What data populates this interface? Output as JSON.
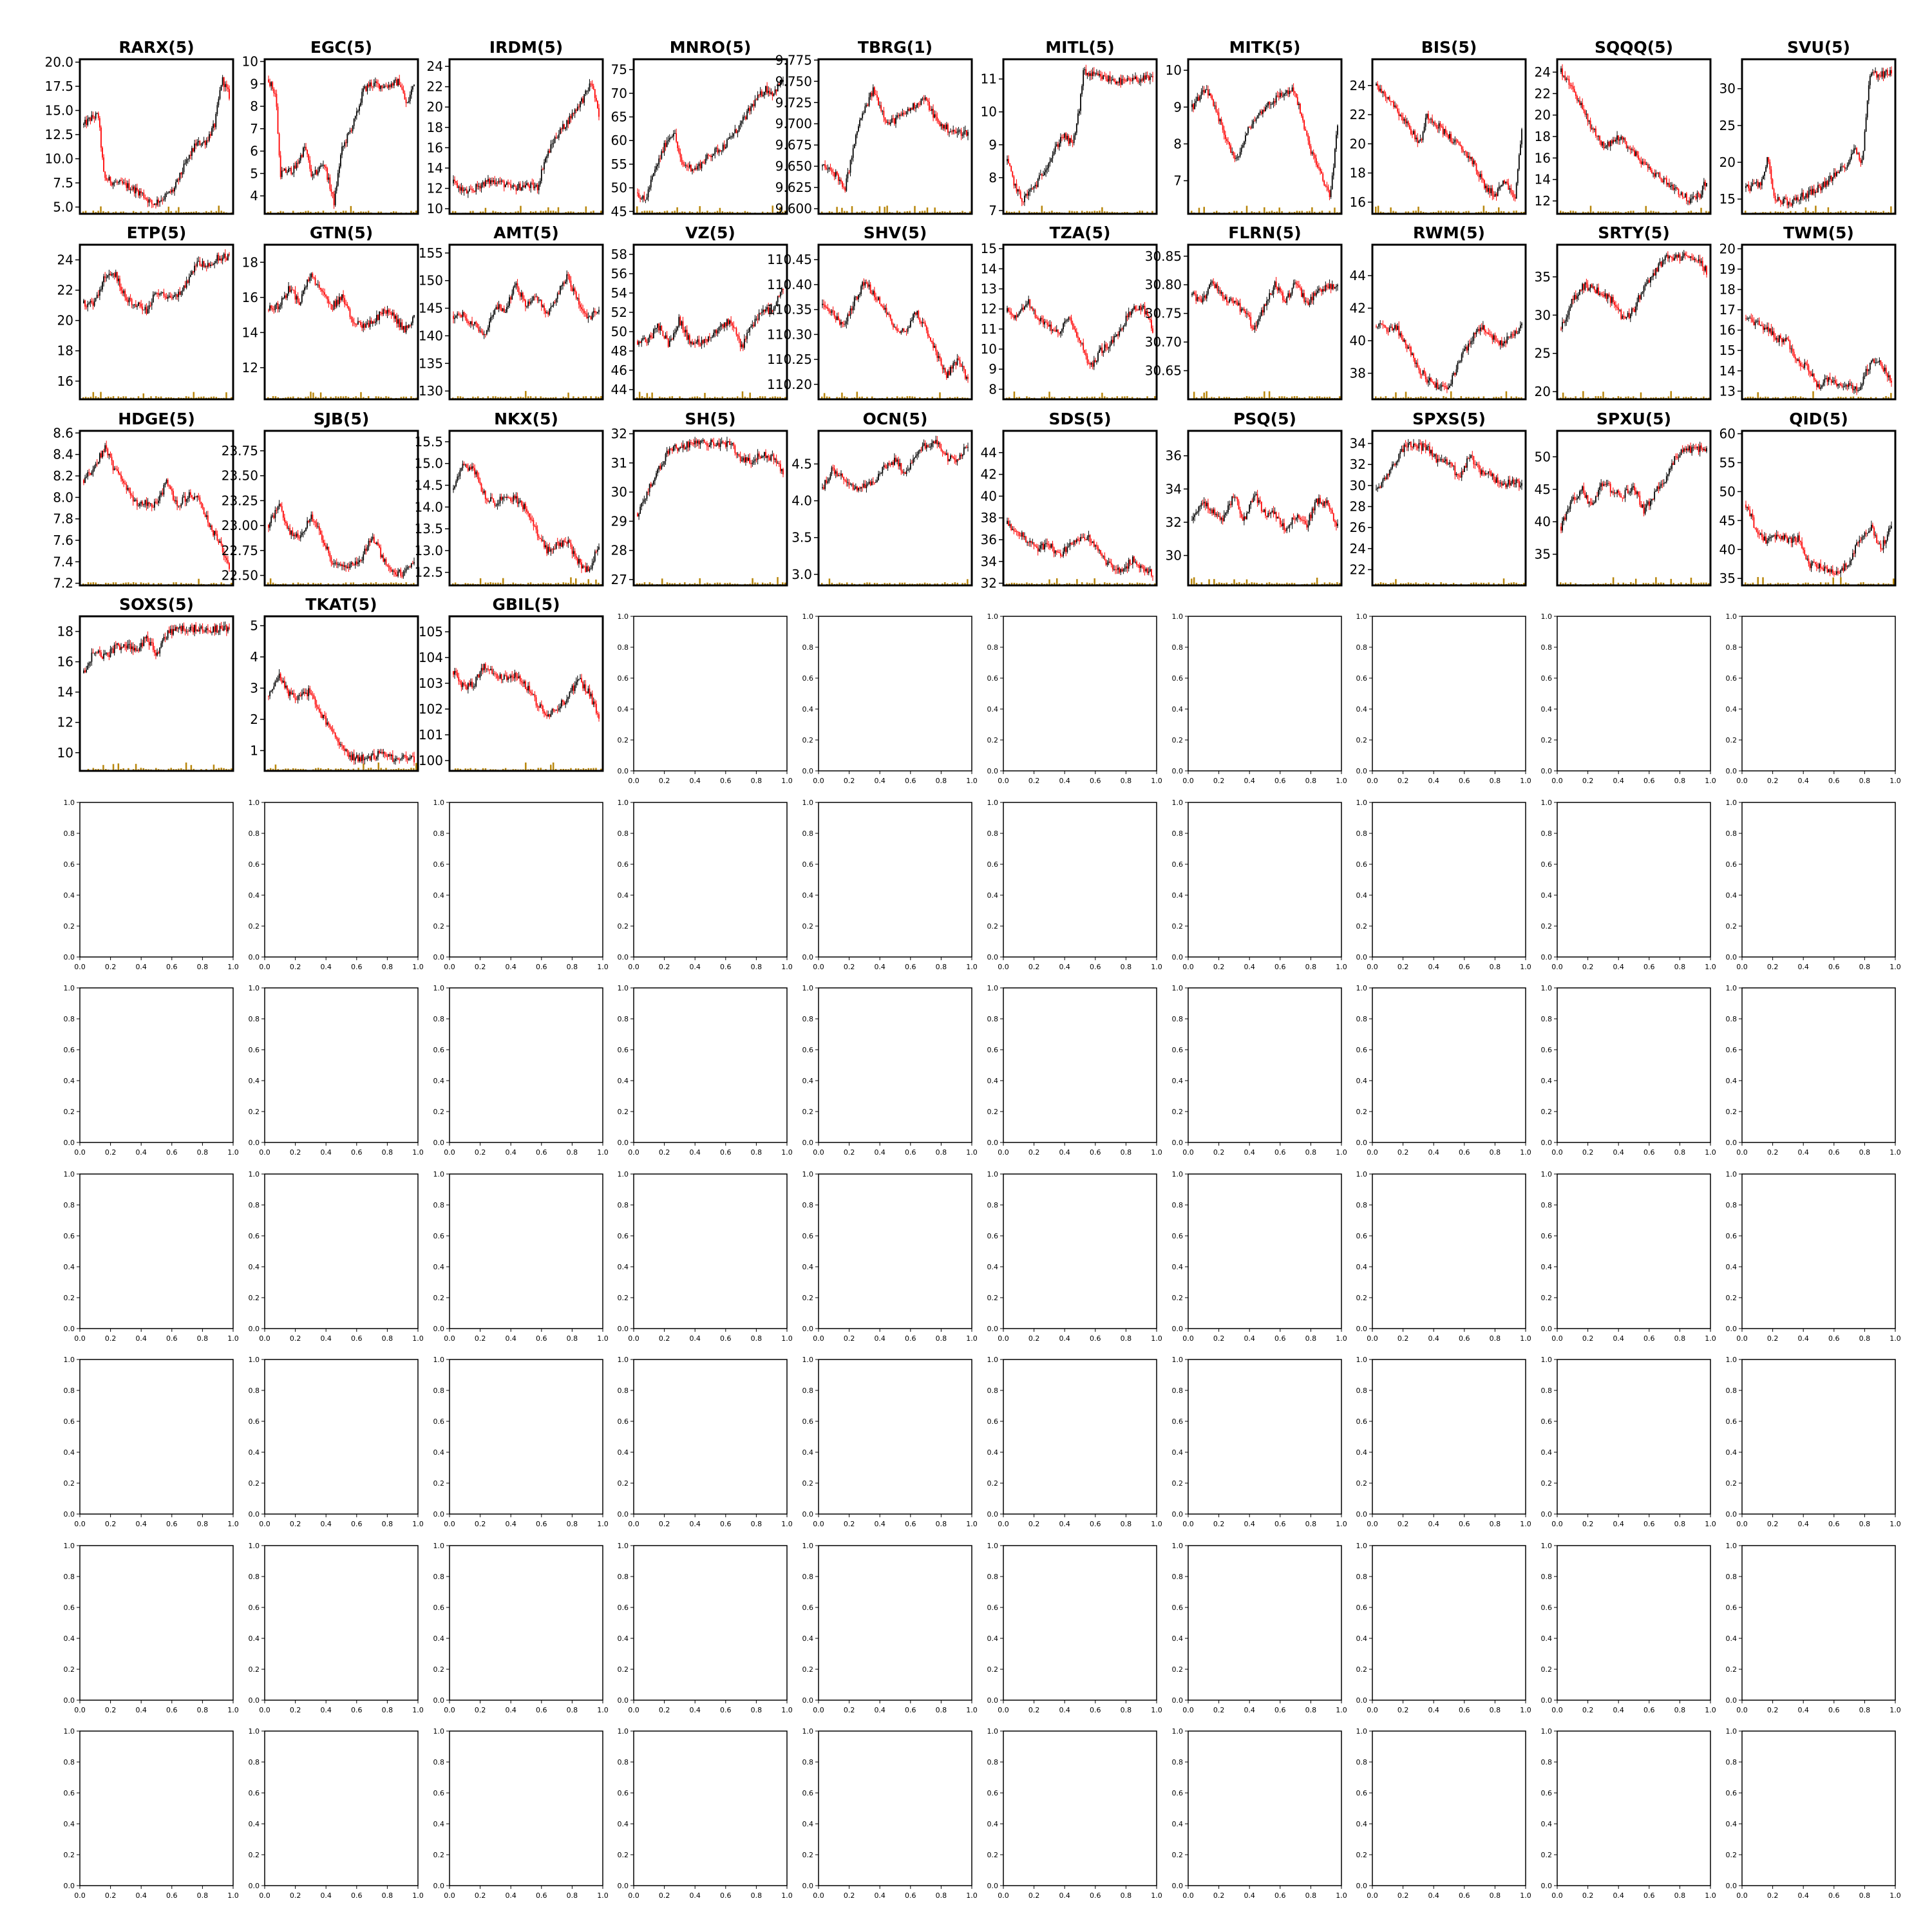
{
  "figure": {
    "background": "#ffffff",
    "rows": 10,
    "cols": 10
  },
  "colors": {
    "up": "#000000",
    "down": "#ff0000",
    "volume": "#b8860b",
    "frame": "#000000"
  },
  "chart_data": [
    {
      "title": "RARX(5)",
      "type": "candlestick",
      "yticks": [
        "5.0",
        "7.5",
        "10.0",
        "12.5",
        "15.0",
        "17.5",
        "20.0"
      ],
      "ylim": [
        4.3,
        20.3
      ],
      "path": [
        [
          0,
          13.5
        ],
        [
          0.05,
          14.2
        ],
        [
          0.1,
          14.5
        ],
        [
          0.14,
          8
        ],
        [
          0.2,
          7.6
        ],
        [
          0.3,
          7.2
        ],
        [
          0.4,
          6.4
        ],
        [
          0.47,
          5.3
        ],
        [
          0.55,
          6
        ],
        [
          0.62,
          6.8
        ],
        [
          0.7,
          9.5
        ],
        [
          0.77,
          11.5
        ],
        [
          0.84,
          11.8
        ],
        [
          0.9,
          13.5
        ],
        [
          0.95,
          18.3
        ],
        [
          1,
          16.5
        ]
      ]
    },
    {
      "title": "EGC(5)",
      "type": "candlestick",
      "yticks": [
        "4",
        "5",
        "6",
        "7",
        "8",
        "9",
        "10"
      ],
      "ylim": [
        3.2,
        10.1
      ],
      "path": [
        [
          0,
          9.2
        ],
        [
          0.05,
          8.5
        ],
        [
          0.08,
          5
        ],
        [
          0.18,
          5.2
        ],
        [
          0.25,
          6.2
        ],
        [
          0.3,
          4.8
        ],
        [
          0.38,
          5.5
        ],
        [
          0.45,
          3.7
        ],
        [
          0.5,
          6
        ],
        [
          0.6,
          7.5
        ],
        [
          0.65,
          8.7
        ],
        [
          0.7,
          9
        ],
        [
          0.8,
          8.9
        ],
        [
          0.9,
          9.1
        ],
        [
          0.95,
          8
        ],
        [
          1,
          9.1
        ]
      ]
    },
    {
      "title": "IRDM(5)",
      "type": "candlestick",
      "yticks": [
        "10",
        "12",
        "14",
        "16",
        "18",
        "20",
        "22",
        "24"
      ],
      "ylim": [
        9.5,
        24.7
      ],
      "path": [
        [
          0,
          12.5
        ],
        [
          0.1,
          11.5
        ],
        [
          0.2,
          12.5
        ],
        [
          0.3,
          12.8
        ],
        [
          0.4,
          12
        ],
        [
          0.5,
          12.3
        ],
        [
          0.58,
          12.1
        ],
        [
          0.62,
          14.5
        ],
        [
          0.7,
          17
        ],
        [
          0.78,
          18.5
        ],
        [
          0.85,
          20
        ],
        [
          0.9,
          21
        ],
        [
          0.95,
          22.5
        ],
        [
          1,
          19
        ]
      ]
    },
    {
      "title": "MNRO(5)",
      "type": "candlestick",
      "yticks": [
        "45",
        "50",
        "55",
        "60",
        "65",
        "70",
        "75"
      ],
      "ylim": [
        44.5,
        77.2
      ],
      "path": [
        [
          0,
          49
        ],
        [
          0.05,
          47
        ],
        [
          0.1,
          52
        ],
        [
          0.2,
          60
        ],
        [
          0.25,
          62
        ],
        [
          0.3,
          55
        ],
        [
          0.4,
          54
        ],
        [
          0.5,
          57
        ],
        [
          0.6,
          59
        ],
        [
          0.7,
          63
        ],
        [
          0.8,
          68
        ],
        [
          0.88,
          71
        ],
        [
          0.93,
          70
        ],
        [
          1,
          73
        ]
      ]
    },
    {
      "title": "TBRG(1)",
      "type": "candlestick",
      "yticks": [
        "9.600",
        "9.625",
        "9.650",
        "9.675",
        "9.700",
        "9.725",
        "9.750",
        "9.775"
      ],
      "ylim": [
        9.594,
        9.776
      ],
      "path": [
        [
          0,
          9.65
        ],
        [
          0.1,
          9.64
        ],
        [
          0.15,
          9.62
        ],
        [
          0.25,
          9.7
        ],
        [
          0.3,
          9.72
        ],
        [
          0.35,
          9.74
        ],
        [
          0.45,
          9.7
        ],
        [
          0.55,
          9.71
        ],
        [
          0.62,
          9.72
        ],
        [
          0.7,
          9.73
        ],
        [
          0.8,
          9.7
        ],
        [
          0.9,
          9.69
        ]
      ]
    },
    {
      "title": "MITL(5)",
      "type": "candlestick",
      "yticks": [
        "7",
        "8",
        "9",
        "10",
        "11"
      ],
      "ylim": [
        6.9,
        11.6
      ],
      "path": [
        [
          0,
          8.5
        ],
        [
          0.05,
          7.8
        ],
        [
          0.1,
          7.3
        ],
        [
          0.2,
          7.8
        ],
        [
          0.3,
          8.6
        ],
        [
          0.38,
          9.3
        ],
        [
          0.45,
          9
        ],
        [
          0.5,
          10.2
        ],
        [
          0.52,
          11.2
        ],
        [
          0.6,
          11.1
        ],
        [
          0.7,
          11
        ],
        [
          0.8,
          10.9
        ],
        [
          0.9,
          11
        ],
        [
          0.97,
          11
        ]
      ]
    },
    {
      "title": "MITK(5)",
      "type": "candlestick",
      "yticks": [
        "7",
        "8",
        "9",
        "10"
      ],
      "ylim": [
        6.1,
        10.3
      ],
      "path": [
        [
          0,
          9
        ],
        [
          0.1,
          9.5
        ],
        [
          0.2,
          8.5
        ],
        [
          0.3,
          7.5
        ],
        [
          0.4,
          8.5
        ],
        [
          0.5,
          9
        ],
        [
          0.6,
          9.3
        ],
        [
          0.7,
          9.5
        ],
        [
          0.8,
          8
        ],
        [
          0.85,
          7.5
        ],
        [
          0.9,
          7
        ],
        [
          0.95,
          6.6
        ],
        [
          1,
          8.5
        ]
      ]
    },
    {
      "title": "BIS(5)",
      "type": "candlestick",
      "yticks": [
        "16",
        "18",
        "20",
        "22",
        "24"
      ],
      "ylim": [
        15.2,
        25.8
      ],
      "path": [
        [
          0,
          24
        ],
        [
          0.1,
          23
        ],
        [
          0.2,
          21.5
        ],
        [
          0.3,
          20
        ],
        [
          0.35,
          22
        ],
        [
          0.45,
          21
        ],
        [
          0.55,
          20
        ],
        [
          0.65,
          19
        ],
        [
          0.75,
          17
        ],
        [
          0.82,
          16.5
        ],
        [
          0.88,
          17.5
        ],
        [
          0.95,
          16
        ],
        [
          1,
          21
        ]
      ]
    },
    {
      "title": "SQQQ(5)",
      "type": "candlestick",
      "yticks": [
        "12",
        "14",
        "16",
        "18",
        "20",
        "22",
        "24"
      ],
      "ylim": [
        10.8,
        25.2
      ],
      "path": [
        [
          0,
          24
        ],
        [
          0.1,
          22
        ],
        [
          0.2,
          19
        ],
        [
          0.3,
          17
        ],
        [
          0.4,
          18
        ],
        [
          0.5,
          16.5
        ],
        [
          0.6,
          15
        ],
        [
          0.7,
          14
        ],
        [
          0.8,
          13
        ],
        [
          0.88,
          12
        ],
        [
          0.95,
          12.5
        ],
        [
          1,
          14
        ]
      ]
    },
    {
      "title": "SVU(5)",
      "type": "candlestick",
      "yticks": [
        "15",
        "20",
        "25",
        "30"
      ],
      "ylim": [
        13,
        34
      ],
      "path": [
        [
          0,
          16.5
        ],
        [
          0.1,
          17
        ],
        [
          0.15,
          20.5
        ],
        [
          0.2,
          15
        ],
        [
          0.3,
          14.5
        ],
        [
          0.4,
          15.5
        ],
        [
          0.5,
          16.5
        ],
        [
          0.6,
          18
        ],
        [
          0.7,
          20
        ],
        [
          0.75,
          22
        ],
        [
          0.8,
          20
        ],
        [
          0.85,
          32
        ],
        [
          0.95,
          32
        ],
        [
          1,
          32.5
        ]
      ]
    },
    {
      "title": "ETP(5)",
      "type": "candlestick",
      "yticks": [
        "16",
        "18",
        "20",
        "22",
        "24"
      ],
      "ylim": [
        14.8,
        25
      ]
    },
    {
      "title": "GTN(5)",
      "type": "candlestick",
      "yticks": [
        "12",
        "14",
        "16",
        "18"
      ],
      "ylim": [
        10.2,
        19
      ]
    },
    {
      "title": "AMT(5)",
      "type": "candlestick",
      "yticks": [
        "130",
        "135",
        "140",
        "145",
        "150",
        "155"
      ],
      "ylim": [
        128.5,
        156.5
      ]
    },
    {
      "title": "VZ(5)",
      "type": "candlestick",
      "yticks": [
        "44",
        "46",
        "48",
        "50",
        "52",
        "54",
        "56",
        "58"
      ],
      "ylim": [
        43,
        59
      ]
    },
    {
      "title": "SHV(5)",
      "type": "candlestick",
      "yticks": [
        "110.20",
        "110.25",
        "110.30",
        "110.35",
        "110.40",
        "110.45"
      ],
      "ylim": [
        110.17,
        110.48
      ]
    },
    {
      "title": "TZA(5)",
      "type": "candlestick",
      "yticks": [
        "8",
        "9",
        "10",
        "11",
        "12",
        "13",
        "14",
        "15"
      ],
      "ylim": [
        7.5,
        15.2
      ]
    },
    {
      "title": "FLRN(5)",
      "type": "candlestick",
      "yticks": [
        "30.65",
        "30.70",
        "30.75",
        "30.80",
        "30.85"
      ],
      "ylim": [
        30.6,
        30.87
      ]
    },
    {
      "title": "RWM(5)",
      "type": "candlestick",
      "yticks": [
        "38",
        "40",
        "42",
        "44"
      ],
      "ylim": [
        36.4,
        45.9
      ]
    },
    {
      "title": "SRTY(5)",
      "type": "candlestick",
      "yticks": [
        "20",
        "25",
        "30",
        "35"
      ],
      "ylim": [
        19,
        39.2
      ]
    },
    {
      "title": "TWM(5)",
      "type": "candlestick",
      "yticks": [
        "13",
        "14",
        "15",
        "16",
        "17",
        "18",
        "19",
        "20"
      ],
      "ylim": [
        12.6,
        20.2
      ]
    },
    {
      "title": "HDGE(5)",
      "type": "candlestick",
      "yticks": [
        "7.2",
        "7.4",
        "7.6",
        "7.8",
        "8.0",
        "8.2",
        "8.4",
        "8.6"
      ],
      "ylim": [
        7.18,
        8.62
      ]
    },
    {
      "title": "SJB(5)",
      "type": "candlestick",
      "yticks": [
        "22.50",
        "22.75",
        "23.00",
        "23.25",
        "23.50",
        "23.75"
      ],
      "ylim": [
        22.4,
        23.95
      ]
    },
    {
      "title": "NKX(5)",
      "type": "candlestick",
      "yticks": [
        "12.5",
        "13.0",
        "13.5",
        "14.0",
        "14.5",
        "15.0",
        "15.5"
      ],
      "ylim": [
        12.2,
        15.75
      ]
    },
    {
      "title": "SH(5)",
      "type": "candlestick",
      "yticks": [
        "27",
        "28",
        "29",
        "30",
        "31",
        "32"
      ],
      "ylim": [
        26.8,
        32.1
      ]
    },
    {
      "title": "OCN(5)",
      "type": "candlestick",
      "yticks": [
        "3.0",
        "3.5",
        "4.0",
        "4.5"
      ],
      "ylim": [
        2.85,
        4.95
      ]
    },
    {
      "title": "SDS(5)",
      "type": "candlestick",
      "yticks": [
        "32",
        "34",
        "36",
        "38",
        "40",
        "42",
        "44"
      ],
      "ylim": [
        31.8,
        46
      ]
    },
    {
      "title": "PSQ(5)",
      "type": "candlestick",
      "yticks": [
        "30",
        "32",
        "34",
        "36"
      ],
      "ylim": [
        28.2,
        37.5
      ]
    },
    {
      "title": "SPXS(5)",
      "type": "candlestick",
      "yticks": [
        "22",
        "24",
        "26",
        "28",
        "30",
        "32",
        "34"
      ],
      "ylim": [
        20.5,
        35.2
      ]
    },
    {
      "title": "SPXU(5)",
      "type": "candlestick",
      "yticks": [
        "35",
        "40",
        "45",
        "50"
      ],
      "ylim": [
        30.2,
        54
      ]
    },
    {
      "title": "QID(5)",
      "type": "candlestick",
      "yticks": [
        "35",
        "40",
        "45",
        "50",
        "55",
        "60"
      ],
      "ylim": [
        33.8,
        60.5
      ]
    },
    {
      "title": "SOXS(5)",
      "type": "candlestick",
      "yticks": [
        "10",
        "12",
        "14",
        "16",
        "18"
      ],
      "ylim": [
        8.8,
        19
      ]
    },
    {
      "title": "TKAT(5)",
      "type": "candlestick",
      "yticks": [
        "1",
        "2",
        "3",
        "4",
        "5"
      ],
      "ylim": [
        0.35,
        5.3
      ]
    },
    {
      "title": "GBIL(5)",
      "type": "candlestick",
      "yticks": [
        "100",
        "101",
        "102",
        "103",
        "104",
        "105"
      ],
      "ylim": [
        99.6,
        105.6
      ]
    }
  ],
  "empty_axes": {
    "xticks": [
      "0.0",
      "0.2",
      "0.4",
      "0.6",
      "0.8",
      "1.0"
    ],
    "yticks": [
      "0.0",
      "0.2",
      "0.4",
      "0.6",
      "0.8",
      "1.0"
    ]
  }
}
